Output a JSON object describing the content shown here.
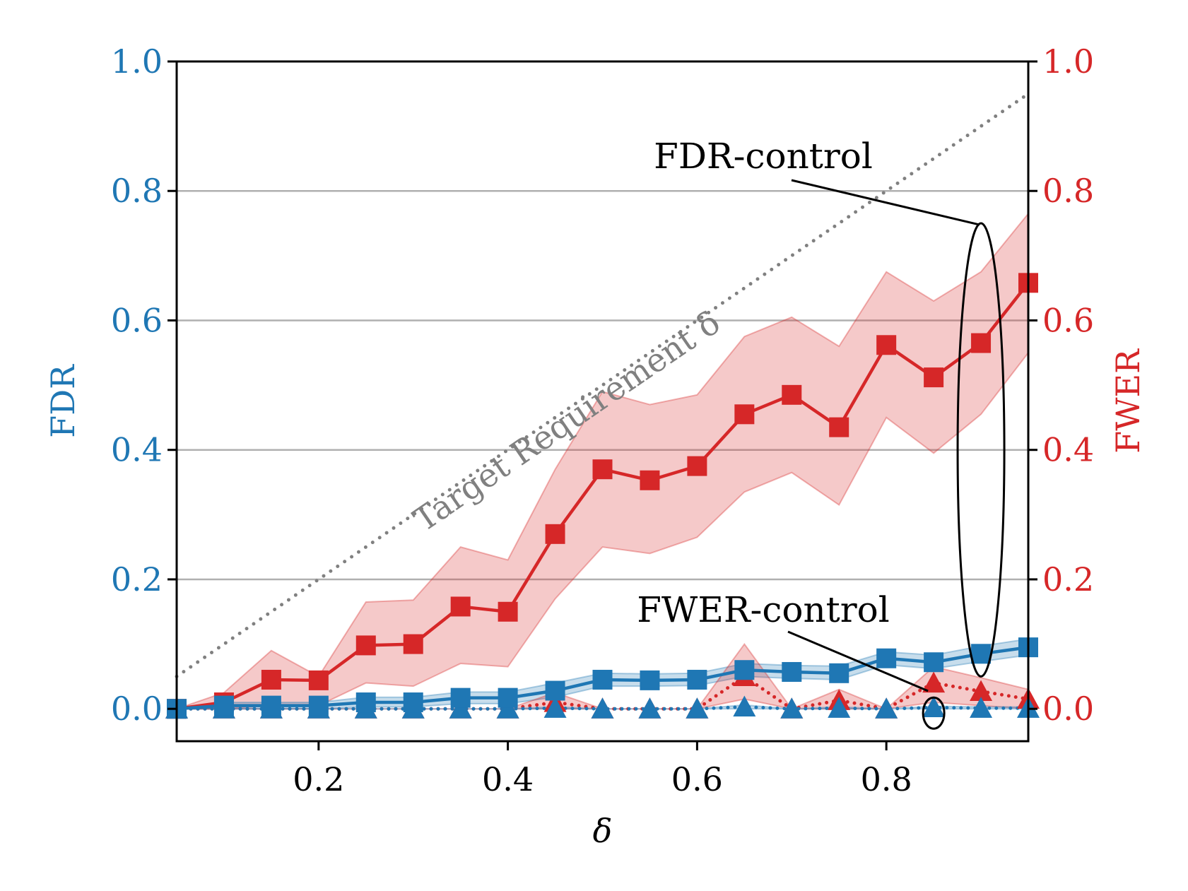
{
  "chart_data": {
    "type": "line",
    "xlabel": "δ",
    "ylabel_left": "FDR",
    "ylabel_right": "FWER",
    "xlim": [
      0.05,
      0.95
    ],
    "ylim": [
      -0.05,
      1.0
    ],
    "x_ticks": [
      "0.2",
      "0.4",
      "0.6",
      "0.8"
    ],
    "y_ticks_left": [
      "0.0",
      "0.2",
      "0.4",
      "0.6",
      "0.8",
      "1.0"
    ],
    "y_ticks_right": [
      "0.0",
      "0.2",
      "0.4",
      "0.6",
      "0.8",
      "1.0"
    ],
    "grid": "horizontal",
    "colors": {
      "blue": "#1f77b4",
      "red": "#d62728",
      "gray": "#808080",
      "grid": "#b0b0b0"
    },
    "x": [
      0.05,
      0.1,
      0.15,
      0.2,
      0.25,
      0.3,
      0.35,
      0.4,
      0.45,
      0.5,
      0.55,
      0.6,
      0.65,
      0.7,
      0.75,
      0.8,
      0.85,
      0.9,
      0.95
    ],
    "target_line": {
      "label": "Target Requirement δ",
      "values": [
        0.05,
        0.95
      ]
    },
    "series": [
      {
        "name": "FWER, FDR-control",
        "axis": "right",
        "color": "#d62728",
        "marker": "square",
        "linestyle": "solid",
        "values": [
          0.0,
          0.01,
          0.045,
          0.044,
          0.098,
          0.1,
          0.158,
          0.15,
          0.27,
          0.37,
          0.353,
          0.375,
          0.455,
          0.485,
          0.435,
          0.562,
          0.512,
          0.565,
          0.658
        ],
        "band_low": [
          0.0,
          0.0,
          0.005,
          0.005,
          0.04,
          0.035,
          0.07,
          0.065,
          0.17,
          0.25,
          0.24,
          0.265,
          0.335,
          0.365,
          0.315,
          0.45,
          0.395,
          0.455,
          0.55
        ],
        "band_high": [
          0.0,
          0.025,
          0.09,
          0.05,
          0.165,
          0.168,
          0.25,
          0.23,
          0.37,
          0.49,
          0.47,
          0.485,
          0.575,
          0.605,
          0.56,
          0.675,
          0.63,
          0.675,
          0.765
        ]
      },
      {
        "name": "FDR, FDR-control",
        "axis": "left",
        "color": "#1f77b4",
        "marker": "square",
        "linestyle": "solid",
        "values": [
          0.0,
          0.005,
          0.005,
          0.005,
          0.01,
          0.01,
          0.017,
          0.017,
          0.028,
          0.045,
          0.044,
          0.045,
          0.06,
          0.057,
          0.055,
          0.078,
          0.072,
          0.085,
          0.095
        ],
        "band_low": [
          0.0,
          0.0,
          0.0,
          0.0,
          0.003,
          0.003,
          0.008,
          0.008,
          0.018,
          0.035,
          0.035,
          0.036,
          0.05,
          0.047,
          0.045,
          0.068,
          0.062,
          0.073,
          0.083
        ],
        "band_high": [
          0.0,
          0.01,
          0.01,
          0.01,
          0.018,
          0.018,
          0.026,
          0.026,
          0.04,
          0.055,
          0.054,
          0.055,
          0.07,
          0.067,
          0.066,
          0.088,
          0.083,
          0.097,
          0.108
        ]
      },
      {
        "name": "FWER, FWER-control",
        "axis": "right",
        "color": "#d62728",
        "marker": "triangle",
        "linestyle": "dotted",
        "values": [
          0.0,
          0.0,
          0.0,
          0.0,
          0.0,
          0.0,
          0.0,
          0.0,
          0.01,
          0.0,
          0.0,
          0.0,
          0.05,
          0.0,
          0.013,
          0.0,
          0.04,
          0.027,
          0.015
        ],
        "band_low": [
          0.0,
          0.0,
          0.0,
          0.0,
          0.0,
          0.0,
          0.0,
          0.0,
          0.0,
          0.0,
          0.0,
          0.0,
          0.015,
          0.0,
          0.0,
          0.0,
          0.01,
          0.005,
          0.0
        ],
        "band_high": [
          0.0,
          0.0,
          0.0,
          0.0,
          0.0,
          0.0,
          0.0,
          0.0,
          0.025,
          0.0,
          0.0,
          0.0,
          0.1,
          0.0,
          0.03,
          0.0,
          0.065,
          0.048,
          0.03
        ]
      },
      {
        "name": "FDR, FWER-control",
        "axis": "left",
        "color": "#1f77b4",
        "marker": "triangle",
        "linestyle": "dotted",
        "values": [
          0.0,
          0.0,
          0.0,
          0.0,
          0.0,
          0.0,
          0.0,
          0.0,
          0.001,
          0.0,
          0.0,
          0.0,
          0.003,
          0.0,
          0.001,
          0.0,
          0.002,
          0.001,
          0.001
        ],
        "band_low": [
          0.0,
          0.0,
          0.0,
          0.0,
          0.0,
          0.0,
          0.0,
          0.0,
          0.0,
          0.0,
          0.0,
          0.0,
          0.0,
          0.0,
          0.0,
          0.0,
          0.0,
          0.0,
          0.0
        ],
        "band_high": [
          0.0,
          0.0,
          0.0,
          0.0,
          0.0,
          0.0,
          0.0,
          0.0,
          0.003,
          0.0,
          0.0,
          0.0,
          0.006,
          0.0,
          0.003,
          0.0,
          0.004,
          0.003,
          0.003
        ]
      }
    ],
    "annotations": [
      {
        "name": "fdr-control",
        "text": "FDR-control",
        "target_x": 0.9,
        "target_y_min": 0.05,
        "target_y_max": 0.75
      },
      {
        "name": "fwer-control",
        "text": "FWER-control",
        "target_x": 0.85,
        "target_y_min": -0.02,
        "target_y_max": 0.02
      }
    ]
  }
}
